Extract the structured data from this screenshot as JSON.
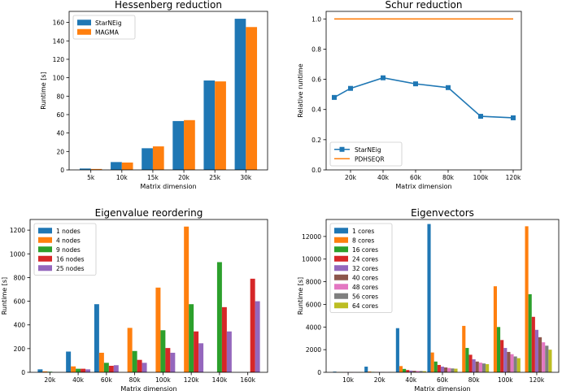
{
  "colors": [
    "#1f77b4",
    "#ff7f0e",
    "#2ca02c",
    "#d62728",
    "#9467bd",
    "#8c564b",
    "#e377c2",
    "#7f7f7f",
    "#bcbd22"
  ],
  "chart_data": [
    {
      "id": "hessenberg",
      "type": "bar",
      "title": "Hessenberg reduction",
      "xlabel": "Matrix dimension",
      "ylabel": "Runtime [s]",
      "categories": [
        "5k",
        "10k",
        "15k",
        "20k",
        "25k",
        "30k"
      ],
      "ylim": [
        0,
        172
      ],
      "yticks": [
        0,
        20,
        40,
        60,
        80,
        100,
        120,
        140,
        160
      ],
      "legend_loc": "top-left",
      "series": [
        {
          "name": "StarNEig",
          "values": [
            1.5,
            8.5,
            23.5,
            53,
            97,
            164
          ]
        },
        {
          "name": "MAGMA",
          "values": [
            1,
            8,
            25.5,
            54,
            96,
            155
          ]
        }
      ]
    },
    {
      "id": "schur",
      "type": "line",
      "title": "Schur reduction",
      "xlabel": "Matrix dimension",
      "ylabel": "Relative runtime",
      "x": [
        10000,
        20000,
        40000,
        60000,
        80000,
        100000,
        120000
      ],
      "xticks": [
        20000,
        40000,
        60000,
        80000,
        100000,
        120000
      ],
      "xticklabels": [
        "20k",
        "40k",
        "60k",
        "80k",
        "100k",
        "120k"
      ],
      "xlim": [
        5000,
        125000
      ],
      "ylim": [
        0,
        1.05
      ],
      "yticks": [
        0.0,
        0.2,
        0.4,
        0.6,
        0.8,
        1.0
      ],
      "yticklabels": [
        "0.0",
        "0.2",
        "0.4",
        "0.6",
        "0.8",
        "1.0"
      ],
      "legend_loc": "bottom-left",
      "series": [
        {
          "name": "StarNEig",
          "values": [
            0.48,
            0.54,
            0.61,
            0.57,
            0.545,
            0.355,
            0.345
          ],
          "marker": "square"
        },
        {
          "name": "PDHSEQR",
          "values": [
            1.0,
            1.0,
            1.0,
            1.0,
            1.0,
            1.0,
            1.0
          ],
          "marker": "none"
        }
      ]
    },
    {
      "id": "reordering",
      "type": "bar",
      "title": "Eigenvalue reordering",
      "xlabel": "Matrix dimension",
      "ylabel": "Runtime [s]",
      "categories": [
        "20k",
        "40k",
        "60k",
        "80k",
        "100k",
        "120k",
        "140k",
        "160k"
      ],
      "ylim": [
        0,
        1290
      ],
      "yticks": [
        0,
        200,
        400,
        600,
        800,
        1000,
        1200
      ],
      "legend_loc": "top-left",
      "series": [
        {
          "name": "1 nodes",
          "values": [
            25,
            175,
            575,
            null,
            null,
            null,
            null,
            null
          ]
        },
        {
          "name": "4 nodes",
          "values": [
            8,
            50,
            165,
            375,
            715,
            1230,
            null,
            null
          ]
        },
        {
          "name": "9 nodes",
          "values": [
            5,
            30,
            80,
            180,
            355,
            575,
            930,
            null
          ]
        },
        {
          "name": "16 nodes",
          "values": [
            null,
            30,
            55,
            105,
            205,
            345,
            550,
            790
          ]
        },
        {
          "name": "25 nodes",
          "values": [
            null,
            25,
            60,
            80,
            165,
            245,
            345,
            600
          ]
        }
      ]
    },
    {
      "id": "eigenvectors",
      "type": "bar",
      "title": "Eigenvectors",
      "xlabel": "Matrix dimension",
      "ylabel": "Runtime [s]",
      "categories": [
        "10k",
        "20k",
        "40k",
        "60k",
        "80k",
        "100k",
        "120k"
      ],
      "ylim": [
        0,
        13500
      ],
      "yticks": [
        0,
        2000,
        4000,
        6000,
        8000,
        10000,
        12000
      ],
      "legend_loc": "top-left",
      "series": [
        {
          "name": "1 cores",
          "values": [
            60,
            500,
            3900,
            13100,
            null,
            null,
            null
          ]
        },
        {
          "name": "8 cores",
          "values": [
            10,
            70,
            550,
            1750,
            4100,
            7600,
            12900
          ]
        },
        {
          "name": "16 cores",
          "values": [
            8,
            40,
            300,
            950,
            2150,
            4000,
            6900
          ]
        },
        {
          "name": "24 cores",
          "values": [
            6,
            30,
            200,
            650,
            1550,
            2850,
            4900
          ]
        },
        {
          "name": "32 cores",
          "values": [
            5,
            25,
            150,
            500,
            1150,
            2150,
            3750
          ]
        },
        {
          "name": "40 cores",
          "values": [
            5,
            20,
            130,
            430,
            950,
            1800,
            3100
          ]
        },
        {
          "name": "48 cores",
          "values": [
            5,
            20,
            120,
            380,
            850,
            1600,
            2650
          ]
        },
        {
          "name": "56 cores",
          "values": [
            5,
            18,
            110,
            340,
            780,
            1400,
            2350
          ]
        },
        {
          "name": "64 cores",
          "values": [
            5,
            18,
            100,
            320,
            720,
            1250,
            2000
          ]
        }
      ]
    }
  ]
}
